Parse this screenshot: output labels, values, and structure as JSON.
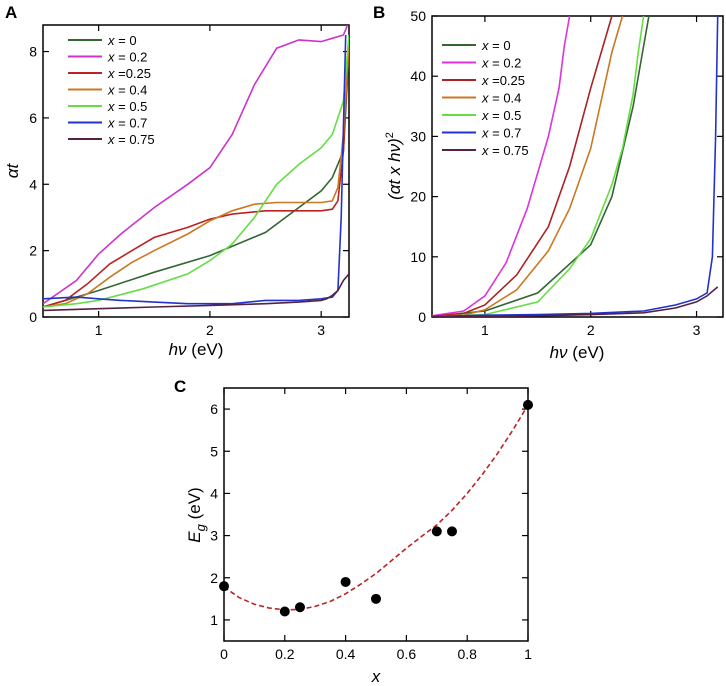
{
  "chart_data": [
    {
      "panel": "A",
      "type": "line",
      "title": "",
      "xlabel_var": "hν",
      "xlabel_unit": " (eV)",
      "ylabel": "αt",
      "xlim": [
        0.5,
        3.25
      ],
      "ylim": [
        0,
        8.8
      ],
      "xticks": [
        1,
        2,
        3
      ],
      "yticks": [
        0,
        2,
        4,
        6,
        8
      ],
      "legend_position": "top-left",
      "series": [
        {
          "name": "x = 0",
          "var": "x",
          "label_rest": " = 0",
          "color": "#336633",
          "x": [
            0.5,
            0.8,
            1.0,
            1.5,
            2.0,
            2.5,
            2.8,
            3.0,
            3.1,
            3.2,
            3.25
          ],
          "y": [
            0.3,
            0.6,
            0.8,
            1.35,
            1.85,
            2.55,
            3.3,
            3.8,
            4.2,
            5.0,
            8.0
          ]
        },
        {
          "name": "x = 0.2",
          "var": "x",
          "label_rest": " = 0.2",
          "color": "#cc33cc",
          "x": [
            0.5,
            0.8,
            1.0,
            1.2,
            1.5,
            1.8,
            2.0,
            2.2,
            2.4,
            2.6,
            2.8,
            3.0,
            3.1,
            3.2,
            3.25
          ],
          "y": [
            0.4,
            1.1,
            1.9,
            2.5,
            3.3,
            4.0,
            4.5,
            5.5,
            7.0,
            8.1,
            8.35,
            8.3,
            8.4,
            8.5,
            8.9
          ]
        },
        {
          "name": "x =0.25",
          "var": "x",
          "label_rest": " =0.25",
          "color": "#bb2222",
          "x": [
            0.5,
            0.7,
            0.9,
            1.1,
            1.3,
            1.5,
            1.8,
            2.0,
            2.2,
            2.5,
            2.8,
            3.0,
            3.1,
            3.15,
            3.2,
            3.25
          ],
          "y": [
            0.3,
            0.5,
            1.0,
            1.6,
            2.0,
            2.4,
            2.7,
            2.95,
            3.1,
            3.2,
            3.2,
            3.2,
            3.25,
            3.5,
            5.0,
            8.5
          ]
        },
        {
          "name": "x = 0.4",
          "var": "x",
          "label_rest": " = 0.4",
          "color": "#cc7722",
          "x": [
            0.5,
            0.7,
            0.9,
            1.1,
            1.3,
            1.5,
            1.8,
            2.0,
            2.2,
            2.4,
            2.6,
            2.8,
            3.0,
            3.1,
            3.15,
            3.2,
            3.25
          ],
          "y": [
            0.3,
            0.4,
            0.7,
            1.2,
            1.65,
            2.0,
            2.5,
            2.9,
            3.2,
            3.4,
            3.45,
            3.45,
            3.45,
            3.5,
            3.9,
            5.5,
            8.3
          ]
        },
        {
          "name": "x = 0.5",
          "var": "x",
          "label_rest": " = 0.5",
          "color": "#66dd44",
          "x": [
            0.5,
            0.8,
            1.0,
            1.4,
            1.8,
            2.0,
            2.2,
            2.4,
            2.6,
            2.8,
            3.0,
            3.1,
            3.2,
            3.25
          ],
          "y": [
            0.3,
            0.4,
            0.5,
            0.85,
            1.3,
            1.7,
            2.2,
            3.0,
            4.0,
            4.6,
            5.1,
            5.5,
            6.5,
            8.5
          ]
        },
        {
          "name": "x = 0.7",
          "var": "x",
          "label_rest": " = 0.7",
          "color": "#2233cc",
          "x": [
            0.5,
            0.8,
            1.0,
            1.2,
            1.5,
            1.8,
            2.0,
            2.2,
            2.5,
            2.8,
            3.0,
            3.1,
            3.15,
            3.18,
            3.22
          ],
          "y": [
            0.55,
            0.6,
            0.55,
            0.5,
            0.45,
            0.4,
            0.4,
            0.4,
            0.5,
            0.5,
            0.55,
            0.6,
            0.8,
            3.0,
            8.5
          ]
        },
        {
          "name": "x = 0.75",
          "var": "x",
          "label_rest": " = 0.75",
          "color": "#552244",
          "x": [
            0.5,
            1.0,
            1.5,
            2.0,
            2.5,
            2.8,
            3.0,
            3.05,
            3.1,
            3.15,
            3.2,
            3.25
          ],
          "y": [
            0.2,
            0.25,
            0.3,
            0.35,
            0.4,
            0.45,
            0.5,
            0.55,
            0.65,
            0.8,
            1.1,
            1.3
          ]
        }
      ]
    },
    {
      "panel": "B",
      "type": "line",
      "title": "",
      "xlabel_var": "hν",
      "xlabel_unit": " (eV)",
      "ylabel": "(αt x hν)²",
      "ylabel_base": "(αt x hν)",
      "ylabel_sup": "2",
      "xlim": [
        0.5,
        3.25
      ],
      "ylim": [
        0,
        50
      ],
      "xticks": [
        1,
        2,
        3
      ],
      "yticks": [
        0,
        10,
        20,
        30,
        40,
        50
      ],
      "legend_position": "top-left",
      "series": [
        {
          "name": "x = 0",
          "var": "x",
          "label_rest": " = 0",
          "color": "#336633",
          "x": [
            0.5,
            1.0,
            1.5,
            2.0,
            2.2,
            2.4,
            2.5,
            2.55
          ],
          "y": [
            0.1,
            1.0,
            4.0,
            12.0,
            20.0,
            35.0,
            45.0,
            50.0
          ]
        },
        {
          "name": "x = 0.2",
          "var": "x",
          "label_rest": " = 0.2",
          "color": "#dd33dd",
          "x": [
            0.5,
            0.8,
            1.0,
            1.2,
            1.4,
            1.6,
            1.7,
            1.75,
            1.8
          ],
          "y": [
            0.2,
            1.0,
            3.5,
            9.0,
            18.0,
            30.0,
            38.0,
            45.0,
            50.0
          ]
        },
        {
          "name": "x =0.25",
          "var": "x",
          "label_rest": " =0.25",
          "color": "#aa2222",
          "x": [
            0.5,
            0.8,
            1.0,
            1.3,
            1.6,
            1.8,
            2.0,
            2.2
          ],
          "y": [
            0.1,
            0.6,
            2.0,
            7.0,
            15.0,
            25.0,
            38.0,
            50.0
          ]
        },
        {
          "name": "x = 0.4",
          "var": "x",
          "label_rest": " = 0.4",
          "color": "#cc7722",
          "x": [
            0.5,
            0.8,
            1.0,
            1.3,
            1.6,
            1.8,
            2.0,
            2.2,
            2.3
          ],
          "y": [
            0.1,
            0.3,
            1.2,
            4.5,
            11.0,
            18.0,
            28.0,
            44.0,
            50.0
          ]
        },
        {
          "name": "x = 0.5",
          "var": "x",
          "label_rest": " = 0.5",
          "color": "#66dd44",
          "x": [
            0.5,
            1.0,
            1.5,
            1.8,
            2.0,
            2.2,
            2.3,
            2.4,
            2.45,
            2.5
          ],
          "y": [
            0.05,
            0.4,
            2.5,
            8.0,
            13.0,
            22.0,
            28.0,
            37.0,
            44.0,
            50.0
          ]
        },
        {
          "name": "x = 0.7",
          "var": "x",
          "label_rest": " = 0.7",
          "color": "#2233cc",
          "x": [
            0.5,
            1.0,
            1.5,
            2.0,
            2.5,
            2.8,
            3.0,
            3.1,
            3.15,
            3.18,
            3.2
          ],
          "y": [
            0.1,
            0.3,
            0.4,
            0.6,
            1.0,
            2.0,
            3.0,
            4.0,
            10.0,
            30.0,
            50.0
          ]
        },
        {
          "name": "x = 0.75",
          "var": "x",
          "label_rest": " = 0.75",
          "color": "#552244",
          "x": [
            0.5,
            1.0,
            1.5,
            2.0,
            2.5,
            2.8,
            3.0,
            3.1,
            3.2
          ],
          "y": [
            0.05,
            0.1,
            0.2,
            0.4,
            0.7,
            1.5,
            2.5,
            3.5,
            5.0
          ]
        }
      ]
    },
    {
      "panel": "C",
      "type": "scatter",
      "title": "",
      "xlabel": "x",
      "ylabel": "Eg (eV)",
      "ylabel_main": "E",
      "ylabel_sub": "g",
      "ylabel_unit": " (eV)",
      "xlim": [
        0,
        1
      ],
      "ylim": [
        0.5,
        6.5
      ],
      "xticks": [
        0,
        0.2,
        0.4,
        0.6,
        0.8,
        1
      ],
      "xtick_labels": [
        "0",
        "0.2",
        "0.4",
        "0.6",
        "0.8",
        "1"
      ],
      "yticks": [
        1,
        2,
        3,
        4,
        5,
        6
      ],
      "points": {
        "x": [
          0,
          0.2,
          0.25,
          0.4,
          0.5,
          0.7,
          0.75,
          1.0
        ],
        "y": [
          1.8,
          1.2,
          1.3,
          1.9,
          1.5,
          3.1,
          3.1,
          6.1
        ],
        "color": "#000000"
      },
      "fit": {
        "style": "dashed",
        "color": "#bb2222",
        "x": [
          0,
          0.05,
          0.1,
          0.15,
          0.2,
          0.25,
          0.3,
          0.35,
          0.4,
          0.45,
          0.5,
          0.55,
          0.6,
          0.65,
          0.7,
          0.75,
          0.8,
          0.85,
          0.9,
          0.95,
          1.0
        ],
        "y": [
          1.78,
          1.53,
          1.37,
          1.28,
          1.24,
          1.25,
          1.32,
          1.44,
          1.62,
          1.85,
          2.1,
          2.4,
          2.7,
          2.98,
          3.25,
          3.6,
          4.0,
          4.45,
          4.95,
          5.5,
          6.1
        ]
      }
    }
  ]
}
